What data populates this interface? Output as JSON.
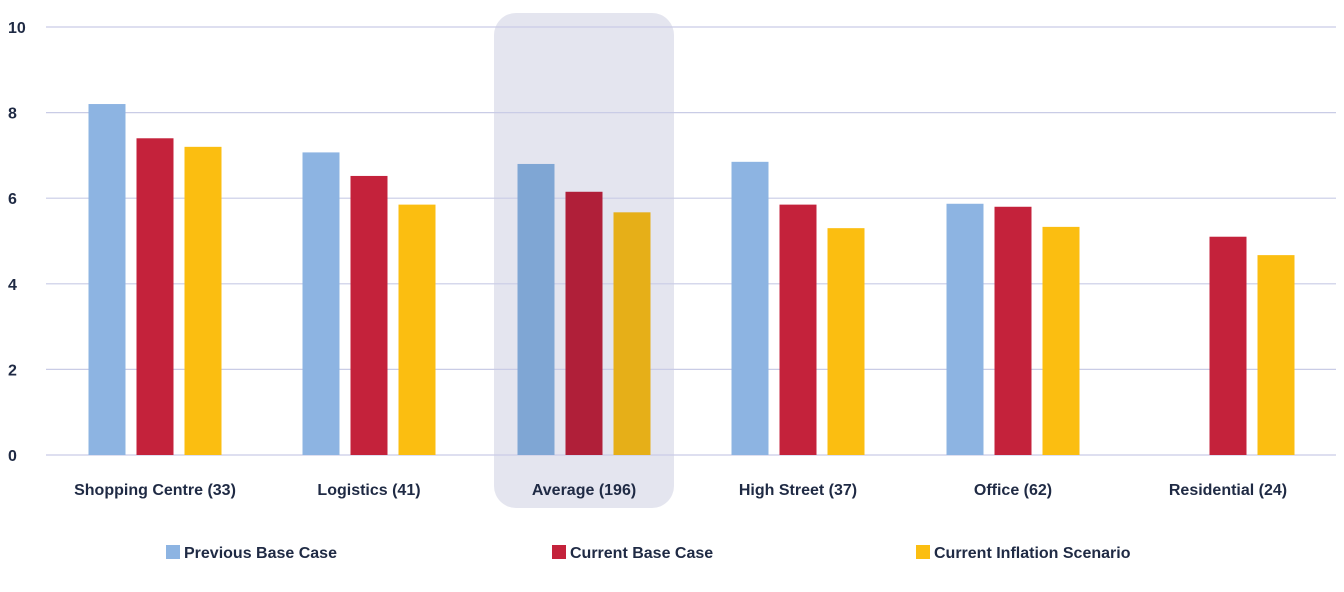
{
  "chart_data": {
    "type": "bar",
    "categories": [
      "Shopping Centre (33)",
      "Logistics (41)",
      "Average (196)",
      "High Street (37)",
      "Office (62)",
      "Residential (24)"
    ],
    "series": [
      {
        "name": "Previous Base Case",
        "color": "#8db4e2",
        "highlight_color": "#7fa6d4",
        "values": [
          8.2,
          7.07,
          6.8,
          6.85,
          5.87,
          null
        ]
      },
      {
        "name": "Current Base Case",
        "color": "#c4223b",
        "highlight_color": "#b01f39",
        "values": [
          7.4,
          6.52,
          6.15,
          5.85,
          5.8,
          5.1
        ]
      },
      {
        "name": "Current Inflation Scenario",
        "color": "#fbbe11",
        "highlight_color": "#e6af18",
        "values": [
          7.2,
          5.85,
          5.67,
          5.3,
          5.33,
          4.67
        ]
      }
    ],
    "yticks": [
      0,
      2,
      4,
      6,
      8,
      10
    ],
    "ylim": [
      0,
      10
    ],
    "highlighted_category": "Average (196)",
    "highlight_color": "#e4e5ef",
    "grid": true,
    "grid_color": "#c9cce6",
    "legend_position": "bottom"
  }
}
